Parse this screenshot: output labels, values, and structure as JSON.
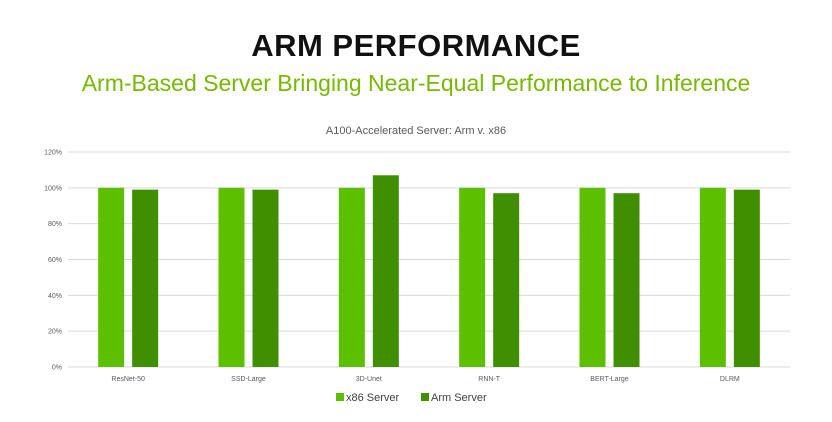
{
  "slide": {
    "title": "ARM PERFORMANCE",
    "subtitle": "Arm-Based Server Bringing Near-Equal Performance to Inference"
  },
  "colors": {
    "accent": "#76b900",
    "x86": "#5cbf00",
    "arm": "#3f8f00",
    "grid": "#d9d9d9"
  },
  "chart_data": {
    "type": "bar",
    "title": "A100-Accelerated Server: Arm v. x86",
    "categories": [
      "ResNet-50",
      "SSD-Large",
      "3D-Unet",
      "RNN-T",
      "BERT-Large",
      "DLRM"
    ],
    "series": [
      {
        "name": "x86 Server",
        "values": [
          100,
          100,
          100,
          100,
          100,
          100
        ]
      },
      {
        "name": "Arm Server",
        "values": [
          99,
          99,
          107,
          97,
          97,
          99
        ]
      }
    ],
    "ylim": [
      0,
      120
    ],
    "yticks": [
      "0%",
      "20%",
      "40%",
      "60%",
      "80%",
      "100%",
      "120%"
    ],
    "grid": true,
    "legend": "bottom"
  }
}
